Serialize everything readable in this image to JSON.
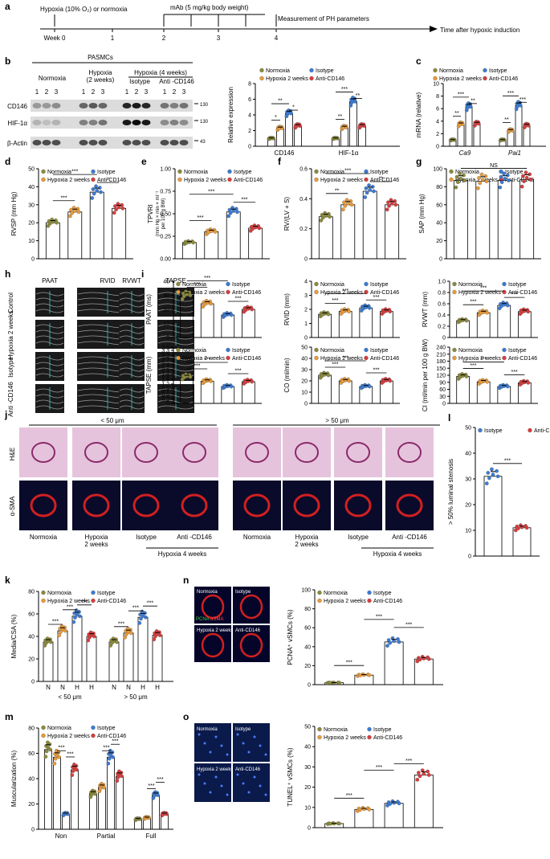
{
  "panel_labels": [
    "a",
    "b",
    "c",
    "d",
    "e",
    "f",
    "g",
    "h",
    "i",
    "j",
    "k",
    "l",
    "m",
    "n",
    "o"
  ],
  "colors": {
    "normoxia": "#8b8b3a",
    "hypoxia": "#e89b3a",
    "isotype": "#3a7bd5",
    "anti": "#d93c3c"
  },
  "legend": {
    "normoxia": "Normoxia",
    "hypoxia2w": "Hypoxia 2 weeks",
    "isotype": "Isotype",
    "anti": "Anti-CD146",
    "hypoxia_2w_alt": "Hypoxia 2 weeks"
  },
  "timeline": {
    "hypoxia_label": "Hypoxia (10% O₂) or normoxia",
    "mab_label": "mAb (5 mg/kg body weight)",
    "measure_label": "Measurement of PH parameters",
    "time_label": "Time after hypoxic induction",
    "weeks": [
      "Week 0",
      "1",
      "2",
      "3",
      "4"
    ]
  },
  "blot": {
    "pasmcs": "PASMCs",
    "groups": [
      "Normoxia",
      "Hypoxia",
      "(2 weeks)",
      "Hypoxia (4 weeks)",
      "Isotype",
      "Anti -CD146"
    ],
    "lanes": [
      "1",
      "2",
      "3",
      "1",
      "2",
      "3",
      "1",
      "2",
      "3",
      "1",
      "2",
      "3"
    ],
    "rows": [
      "CD146",
      "HIF-1α",
      "β-Actin"
    ],
    "mw": [
      "130",
      "130",
      "43"
    ]
  },
  "chart_data": [
    {
      "panel": "b",
      "type": "bar",
      "ylabel": "Relative expression",
      "yticks": [
        0,
        2,
        4,
        6,
        8
      ],
      "categories": [
        "CD146",
        "HIF-1α"
      ],
      "values": [
        [
          1,
          2.3,
          4.2,
          2.6
        ],
        [
          1,
          2.4,
          5.7,
          2.6
        ]
      ],
      "sig": [
        "*",
        "**",
        "*",
        "**",
        "***",
        "**"
      ]
    },
    {
      "panel": "c",
      "type": "bar",
      "ylabel": "mRNA (relative)",
      "yticks": [
        0,
        2,
        4,
        6,
        8,
        10
      ],
      "categories": [
        "Ca9",
        "Pai1"
      ],
      "values": [
        [
          1,
          3.5,
          6.3,
          3.6
        ],
        [
          1,
          2.5,
          6.5,
          3.3
        ]
      ],
      "sig": [
        "**",
        "***",
        "**",
        "**",
        "***",
        "***"
      ]
    },
    {
      "panel": "d",
      "type": "bar",
      "ylabel": "RVSP (mm Hg)",
      "yticks": [
        0,
        10,
        20,
        30,
        40,
        50
      ],
      "values": [
        20,
        26,
        37,
        28
      ],
      "sig": [
        "***",
        "***",
        "*"
      ]
    },
    {
      "panel": "e",
      "type": "bar",
      "ylabel": "TPVRI",
      "ylabel2": "(mm Hg × min × ml⁻¹",
      "ylabel3": "per 100 g BW)",
      "yticks": [
        0.0,
        0.25,
        0.5,
        0.75,
        1.0
      ],
      "ytick_labels": [
        "0.00",
        "0.25",
        "0.50",
        "0.75",
        "1.00"
      ],
      "values": [
        0.18,
        0.3,
        0.52,
        0.34
      ],
      "sig": [
        "***",
        "***",
        "***"
      ]
    },
    {
      "panel": "f",
      "type": "bar",
      "ylabel": "RV/(LV + S)",
      "yticks": [
        0,
        0.2,
        0.4,
        0.6
      ],
      "ytick_labels": [
        "0",
        "0.2",
        "0.4",
        "0.6"
      ],
      "values": [
        0.28,
        0.36,
        0.45,
        0.36
      ],
      "sig": [
        "**",
        "***",
        "**"
      ]
    },
    {
      "panel": "g",
      "type": "bar",
      "ylabel": "SAP (mm Hg)",
      "yticks": [
        0,
        20,
        40,
        60,
        80,
        100
      ],
      "values": [
        87,
        86,
        87,
        88
      ],
      "sig": [
        "NS"
      ]
    },
    {
      "panel": "i1",
      "type": "bar",
      "ylabel": "PAAT (ms)",
      "yticks": [
        0,
        10,
        20,
        30,
        40
      ],
      "values": [
        30,
        24,
        16,
        20
      ],
      "sig": [
        "***",
        "***",
        "***"
      ]
    },
    {
      "panel": "i2",
      "type": "bar",
      "ylabel": "RVID (mm)",
      "yticks": [
        0,
        1,
        2,
        3,
        4
      ],
      "values": [
        1.65,
        1.85,
        2.1,
        1.85
      ],
      "sig": [
        "***",
        "***",
        "***"
      ]
    },
    {
      "panel": "i3",
      "type": "bar",
      "ylabel": "RVWT (mm)",
      "yticks": [
        0,
        0.2,
        0.4,
        0.6,
        0.8,
        1.0
      ],
      "ytick_labels": [
        "0",
        "0.2",
        "0.4",
        "0.6",
        "0.8",
        "1.0"
      ],
      "values": [
        0.3,
        0.44,
        0.57,
        0.46
      ],
      "sig": [
        "***",
        "***",
        "***"
      ]
    },
    {
      "panel": "i4",
      "type": "bar",
      "ylabel": "TAPSE (mm)",
      "yticks": [
        0,
        0.3,
        0.6,
        0.9,
        1.2,
        1.5,
        1.8,
        2.1,
        2.4,
        2.7,
        3.0,
        3.3,
        3.5
      ],
      "ytick_labels": [
        "0",
        "0.3",
        "0.6",
        "0.9",
        "1.2",
        "1.5",
        "1.8",
        "2.1",
        "2.4",
        "2.7",
        "3.0",
        "3.3",
        "3.5"
      ],
      "values": [
        1.65,
        1.38,
        1.05,
        1.35
      ],
      "sig": [
        "***",
        "***",
        "***"
      ]
    },
    {
      "panel": "i5",
      "type": "bar",
      "ylabel": "CO (ml/min)",
      "yticks": [
        0,
        10,
        20,
        30,
        40,
        50
      ],
      "values": [
        25,
        20,
        15,
        20
      ],
      "sig": [
        "***",
        "***",
        "***"
      ]
    },
    {
      "panel": "i6",
      "type": "bar",
      "ylabel": "CI (ml/min per 100 g BW)",
      "yticks": [
        0,
        30,
        60,
        90,
        120,
        150,
        180,
        210,
        240
      ],
      "values": [
        115,
        92,
        72,
        88
      ],
      "sig": [
        "***",
        "***",
        "***"
      ]
    },
    {
      "panel": "k",
      "type": "bar",
      "ylabel": "Media/CSA (%)",
      "yticks": [
        0,
        20,
        40,
        60,
        80
      ],
      "categories": [
        "N",
        "N",
        "H",
        "H",
        "N",
        "N",
        "H",
        "H"
      ],
      "groups": [
        "< 50 μm",
        "> 50 μm"
      ],
      "values": [
        35,
        45,
        58,
        40,
        35,
        43,
        57,
        41
      ],
      "sig": [
        "***",
        "***",
        "***",
        "***",
        "***",
        "***"
      ]
    },
    {
      "panel": "l",
      "type": "bar",
      "ylabel": "> 50% luminal stenosis",
      "yticks": [
        0,
        10,
        20,
        30,
        40,
        50
      ],
      "values": [
        31,
        11
      ],
      "sig": [
        "***"
      ]
    },
    {
      "panel": "m",
      "type": "bar",
      "ylabel": "Muscularization (%)",
      "yticks": [
        0,
        20,
        40,
        60,
        80
      ],
      "categories": [
        "Non",
        "Partial",
        "Full"
      ],
      "values": [
        [
          63,
          57,
          12,
          47
        ],
        [
          28,
          33,
          57,
          42
        ],
        [
          8,
          9,
          27,
          12
        ]
      ],
      "sig": [
        "***",
        "***",
        "***",
        "***",
        "***",
        "***"
      ]
    },
    {
      "panel": "n",
      "type": "bar",
      "ylabel": "PCNA⁺ vSMCs (%)",
      "yticks": [
        0,
        20,
        40,
        60,
        80,
        100
      ],
      "values": [
        2,
        10,
        45,
        27
      ],
      "sig": [
        "***",
        "***",
        "***"
      ]
    },
    {
      "panel": "o",
      "type": "bar",
      "ylabel": "TUNEL⁺ vSMCs (%)",
      "yticks": [
        0,
        10,
        20,
        30,
        40,
        50
      ],
      "values": [
        2,
        9,
        12,
        26
      ],
      "sig": [
        "***",
        "***",
        "***"
      ]
    }
  ],
  "echo": {
    "cols": [
      "PAAT",
      "RVID",
      "RVWT",
      "TAPSE"
    ],
    "rows": [
      "Control",
      "Hypoxia 2 weeks",
      "Isotype",
      "Anti -CD146"
    ]
  },
  "histology": {
    "left_title": "< 50 μm",
    "right_title": "> 50 μm",
    "he": "H&E",
    "asma": "α-SMA",
    "captions": [
      "Normoxia",
      "Hypoxia",
      "2 weeks",
      "Isotype",
      "Anti -CD146",
      "Hypoxia 4 weeks"
    ]
  },
  "k_groups": [
    "< 50 μm",
    "> 50 μm"
  ],
  "if_labels": {
    "normoxia": "Normoxia",
    "isotype": "Isotype",
    "hypoxia2w": "Hypoxia 2 weeks",
    "anti": "Anti-CD146",
    "pcna": "PCNA",
    "asma": "αSMA"
  },
  "m_cats": [
    "Non",
    "Partial",
    "Full"
  ]
}
